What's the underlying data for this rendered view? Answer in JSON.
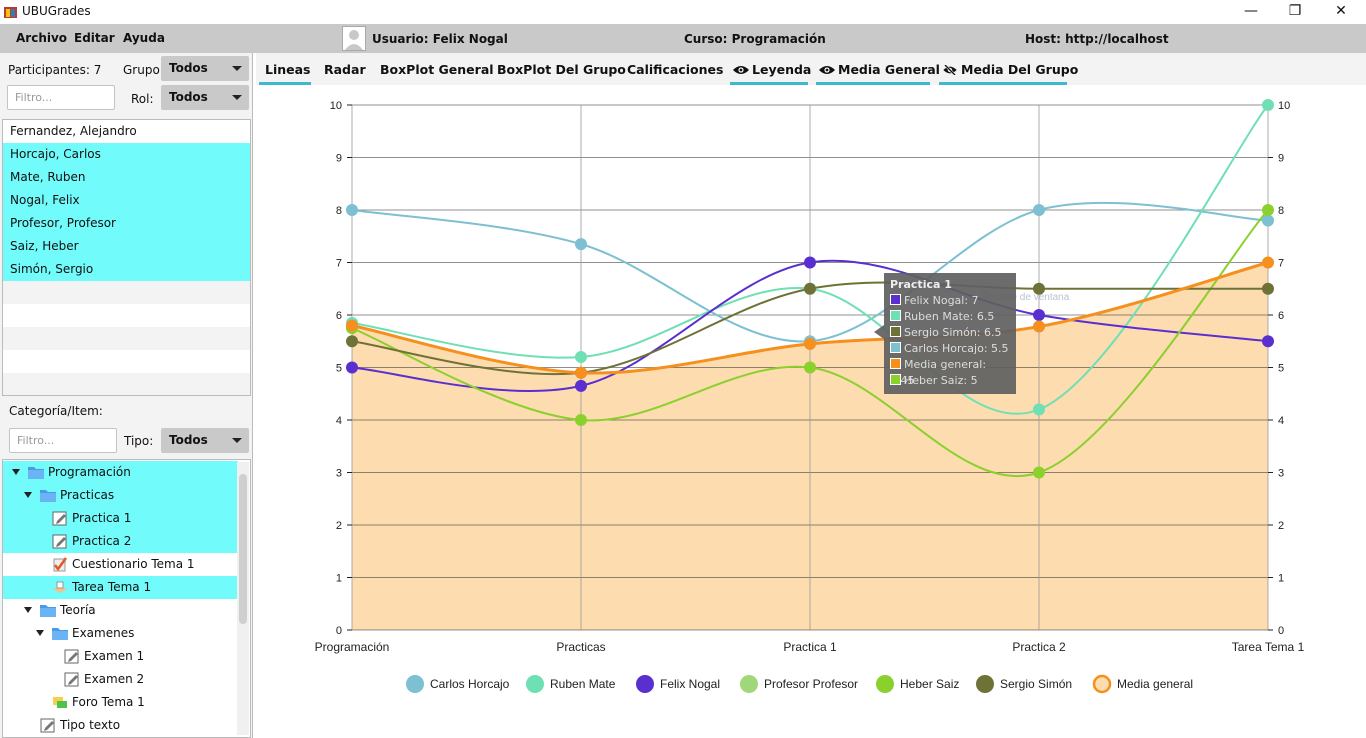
{
  "window": {
    "title": "UBUGrades",
    "minimize": "—",
    "restore": "❐",
    "close": "✕"
  },
  "menu": {
    "archivo": "Archivo",
    "editar": "Editar",
    "ayuda": "Ayuda"
  },
  "info": {
    "usuario": "Usuario: Felix Nogal",
    "curso": "Curso: Programación",
    "host": "Host: http://localhost"
  },
  "participants": {
    "count_label": "Participantes: 7",
    "grupo_label": "Grupo:",
    "grupo_value": "Todos",
    "rol_label": "Rol:",
    "rol_value": "Todos",
    "filter_placeholder": "Filtro...",
    "list": [
      "Fernandez, Alejandro",
      "Horcajo, Carlos",
      "Mate, Ruben",
      "Nogal, Felix",
      "Profesor, Profesor",
      "Saiz, Heber",
      "Simón, Sergio"
    ]
  },
  "items": {
    "section_label": "Categoría/Item:",
    "filter_placeholder": "Filtro...",
    "tipo_label": "Tipo:",
    "tipo_value": "Todos",
    "tree": [
      "Programación",
      "Practicas",
      "Practica 1",
      "Practica 2",
      "Cuestionario Tema 1",
      "Tarea Tema 1",
      "Teoría",
      "Examenes",
      "Examen 1",
      "Examen 2",
      "Foro Tema 1",
      "Tipo texto"
    ]
  },
  "tabs": {
    "lineas": "Lineas",
    "radar": "Radar",
    "boxplot_general": "BoxPlot General",
    "boxplot_grupo": "BoxPlot Del Grupo",
    "calificaciones": "Calificaciones",
    "leyenda": "Leyenda",
    "media_general": "Media General",
    "media_grupo": "Media Del Grupo"
  },
  "tooltip": {
    "title": "Practica 1",
    "rows": [
      "Felix Nogal: 7",
      "Ruben Mate: 6.5",
      "Sergio Simón: 6.5",
      "Carlos Horcajo: 5.5",
      "Media general: 5.45",
      "Heber Saiz: 5"
    ],
    "colors": [
      "#5a2fcf",
      "#6fe0b4",
      "#6f7236",
      "#7cc0d1",
      "#f5901e",
      "#8ad12e"
    ],
    "ghost_text": "Recorte de ventana"
  },
  "chart_data": {
    "type": "line",
    "categories": [
      "Programación",
      "Practicas",
      "Practica 1",
      "Practica 2",
      "Tarea Tema 1"
    ],
    "ylim": [
      0,
      10
    ],
    "yticks": [
      "0",
      "1",
      "2",
      "3",
      "4",
      "5",
      "6",
      "7",
      "8",
      "9",
      "10"
    ],
    "grid": true,
    "legend_position": "bottom",
    "series": [
      {
        "name": "Carlos Horcajo",
        "color": "#7cc0d1",
        "values": [
          8,
          7.35,
          5.5,
          8,
          7.8
        ]
      },
      {
        "name": "Ruben Mate",
        "color": "#6fe0b4",
        "values": [
          5.85,
          5.2,
          6.5,
          4.2,
          10
        ]
      },
      {
        "name": "Felix Nogal",
        "color": "#5a2fcf",
        "values": [
          5,
          4.65,
          7,
          6,
          5.5
        ]
      },
      {
        "name": "Profesor Profesor",
        "color": "#9fd77a",
        "values": [
          null,
          null,
          null,
          null,
          null
        ]
      },
      {
        "name": "Heber Saiz",
        "color": "#8ad12e",
        "values": [
          5.75,
          4,
          5,
          3,
          8
        ]
      },
      {
        "name": "Sergio Simón",
        "color": "#6f7236",
        "values": [
          5.5,
          4.9,
          6.5,
          6.5,
          6.5
        ]
      },
      {
        "name": "Media general",
        "color": "#f5901e",
        "values": [
          5.8,
          4.9,
          5.45,
          5.78,
          7
        ],
        "area": true
      }
    ]
  }
}
